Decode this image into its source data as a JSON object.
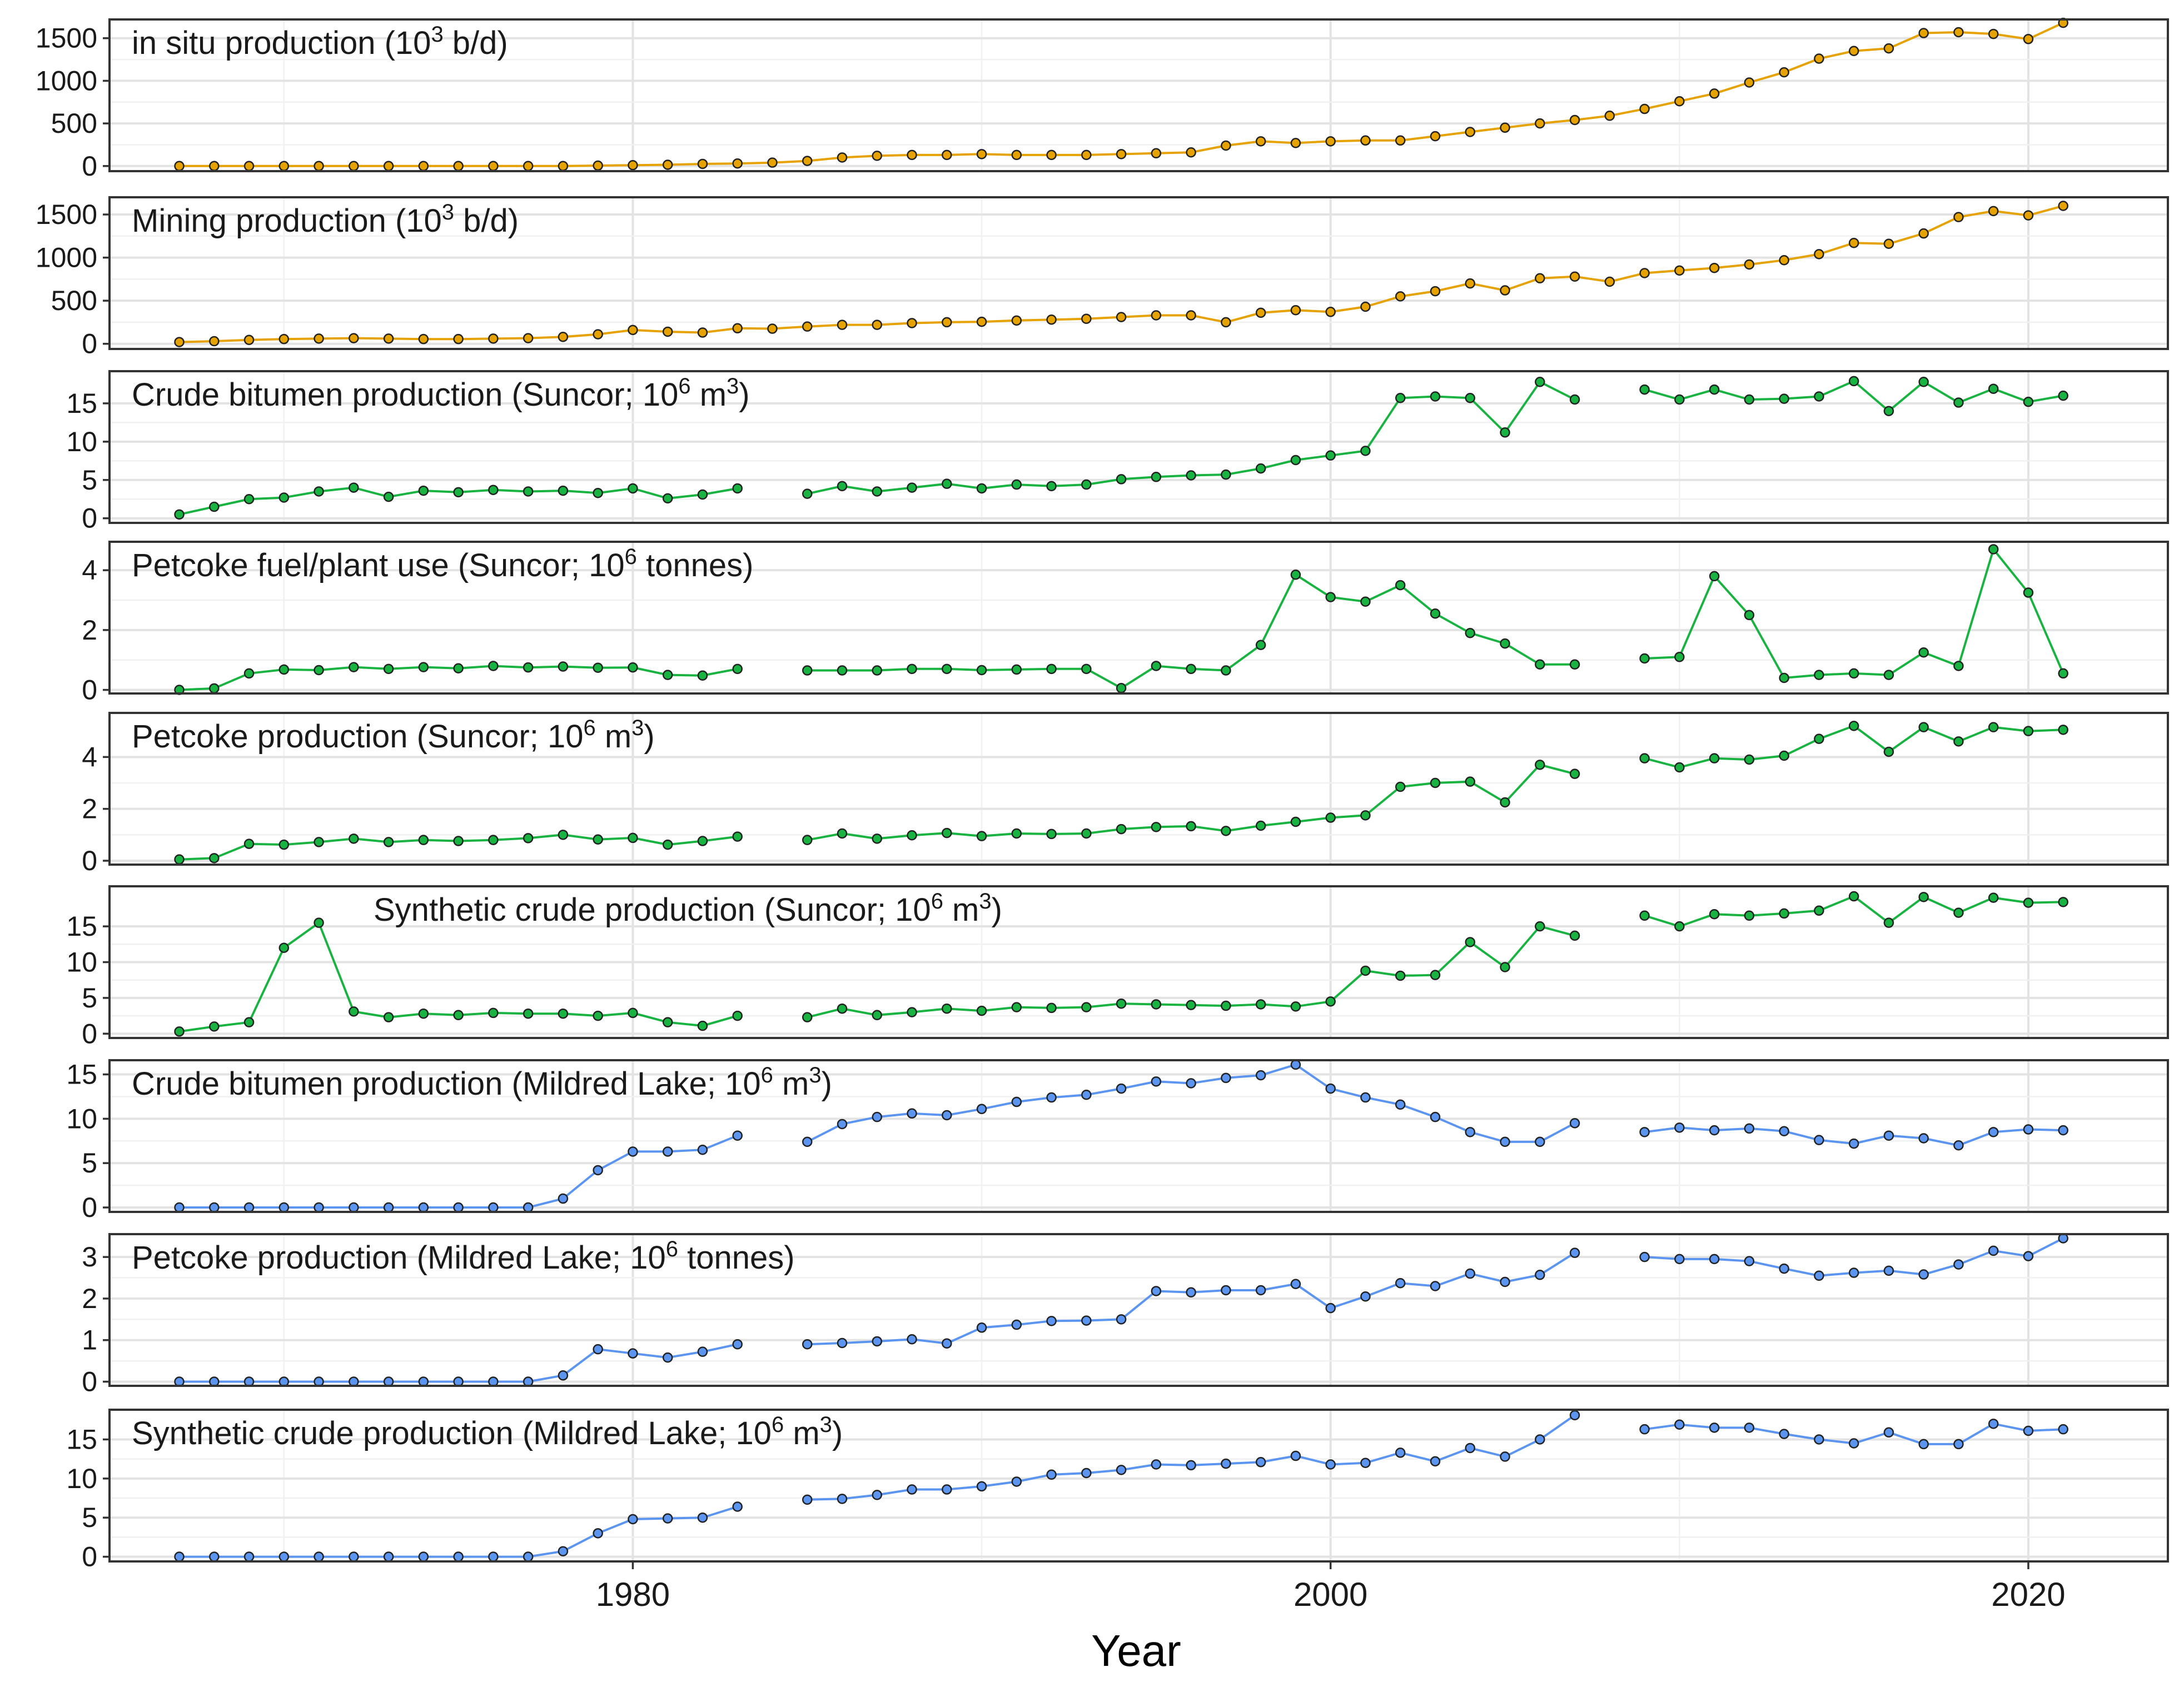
{
  "figure": {
    "xlabel": "Year",
    "xlim": [
      1965,
      2024
    ],
    "xticks": [
      1980,
      2000,
      2020
    ]
  },
  "colors": {
    "orange": "#e5a200",
    "green": "#19b341",
    "blue": "#5b95f0"
  },
  "chart_data": [
    {
      "type": "line",
      "color_key": "orange",
      "title_parts": [
        {
          "t": "in situ production (10"
        },
        {
          "t": "3",
          "sup": true
        },
        {
          "t": " b/d)"
        }
      ],
      "title_anchor": "left",
      "ylim": [
        -60,
        1720
      ],
      "yticks": [
        0,
        500,
        1000,
        1500
      ],
      "yticklabels": [
        "0",
        "500",
        "1000",
        "1500"
      ],
      "x": [
        1967,
        1968,
        1969,
        1970,
        1971,
        1972,
        1973,
        1974,
        1975,
        1976,
        1977,
        1978,
        1979,
        1980,
        1981,
        1982,
        1983,
        1984,
        1985,
        1986,
        1987,
        1988,
        1989,
        1990,
        1991,
        1992,
        1993,
        1994,
        1995,
        1996,
        1997,
        1998,
        1999,
        2000,
        2001,
        2002,
        2003,
        2004,
        2005,
        2006,
        2007,
        2008,
        2009,
        2010,
        2011,
        2012,
        2013,
        2014,
        2015,
        2016,
        2017,
        2018,
        2019,
        2020,
        2021
      ],
      "y": [
        0,
        0,
        0,
        0,
        0,
        0,
        0,
        0,
        0,
        0,
        0,
        0,
        5,
        10,
        15,
        25,
        30,
        40,
        60,
        100,
        120,
        130,
        130,
        140,
        130,
        130,
        130,
        140,
        150,
        160,
        240,
        290,
        270,
        290,
        300,
        300,
        350,
        400,
        450,
        500,
        540,
        590,
        670,
        760,
        850,
        980,
        1100,
        1260,
        1350,
        1380,
        1560,
        1570,
        1550,
        1490,
        1680
      ]
    },
    {
      "type": "line",
      "color_key": "orange",
      "title_parts": [
        {
          "t": "Mining production (10"
        },
        {
          "t": "3",
          "sup": true
        },
        {
          "t": " b/d)"
        }
      ],
      "title_anchor": "left",
      "ylim": [
        -60,
        1700
      ],
      "yticks": [
        0,
        500,
        1000,
        1500
      ],
      "yticklabels": [
        "0",
        "500",
        "1000",
        "1500"
      ],
      "x": [
        1967,
        1968,
        1969,
        1970,
        1971,
        1972,
        1973,
        1974,
        1975,
        1976,
        1977,
        1978,
        1979,
        1980,
        1981,
        1982,
        1983,
        1984,
        1985,
        1986,
        1987,
        1988,
        1989,
        1990,
        1991,
        1992,
        1993,
        1994,
        1995,
        1996,
        1997,
        1998,
        1999,
        2000,
        2001,
        2002,
        2003,
        2004,
        2005,
        2006,
        2007,
        2008,
        2009,
        2010,
        2011,
        2012,
        2013,
        2014,
        2015,
        2016,
        2017,
        2018,
        2019,
        2020,
        2021
      ],
      "y": [
        20,
        30,
        45,
        55,
        60,
        65,
        60,
        55,
        55,
        60,
        65,
        80,
        110,
        160,
        140,
        130,
        180,
        175,
        200,
        220,
        220,
        240,
        250,
        255,
        270,
        280,
        290,
        310,
        330,
        330,
        250,
        360,
        390,
        370,
        430,
        550,
        610,
        700,
        620,
        760,
        780,
        720,
        820,
        850,
        880,
        920,
        970,
        1040,
        1170,
        1160,
        1280,
        1470,
        1540,
        1490,
        1600
      ]
    },
    {
      "type": "line",
      "color_key": "green",
      "title_parts": [
        {
          "t": "Crude bitumen production (Suncor; 10"
        },
        {
          "t": "6",
          "sup": true
        },
        {
          "t": " m"
        },
        {
          "t": "3",
          "sup": true
        },
        {
          "t": ")"
        }
      ],
      "title_anchor": "left",
      "ylim": [
        -0.6,
        19.2
      ],
      "yticks": [
        0,
        5,
        10,
        15
      ],
      "yticklabels": [
        "0",
        "5",
        "10",
        "15"
      ],
      "x": [
        1967,
        1968,
        1969,
        1970,
        1971,
        1972,
        1973,
        1974,
        1975,
        1976,
        1977,
        1978,
        1979,
        1980,
        1981,
        1982,
        1983,
        null,
        1985,
        1986,
        1987,
        1988,
        1989,
        1990,
        1991,
        1992,
        1993,
        1994,
        1995,
        1996,
        1997,
        1998,
        1999,
        2000,
        2001,
        2002,
        2003,
        2004,
        2005,
        2006,
        2007,
        null,
        2009,
        2010,
        2011,
        2012,
        2013,
        2014,
        2015,
        2016,
        2017,
        2018,
        2019,
        2020,
        2021
      ],
      "y": [
        0.5,
        1.5,
        2.5,
        2.7,
        3.5,
        4,
        2.8,
        3.6,
        3.4,
        3.7,
        3.5,
        3.6,
        3.3,
        3.9,
        2.6,
        3.1,
        3.9,
        null,
        3.2,
        4.2,
        3.5,
        4,
        4.5,
        3.9,
        4.4,
        4.2,
        4.4,
        5.1,
        5.4,
        5.6,
        5.7,
        6.5,
        7.6,
        8.2,
        8.8,
        15.7,
        15.9,
        15.7,
        11.2,
        17.8,
        15.5,
        null,
        16.8,
        15.5,
        16.8,
        15.5,
        15.6,
        15.9,
        17.9,
        14,
        17.8,
        15.1,
        16.9,
        15.2,
        16
      ]
    },
    {
      "type": "line",
      "color_key": "green",
      "title_parts": [
        {
          "t": "Petcoke fuel/plant use (Suncor; 10"
        },
        {
          "t": "6",
          "sup": true
        },
        {
          "t": " tonnes)"
        }
      ],
      "title_anchor": "left",
      "ylim": [
        -0.12,
        4.95
      ],
      "yticks": [
        0,
        2,
        4
      ],
      "yticklabels": [
        "0",
        "2",
        "4"
      ],
      "x": [
        1967,
        1968,
        1969,
        1970,
        1971,
        1972,
        1973,
        1974,
        1975,
        1976,
        1977,
        1978,
        1979,
        1980,
        1981,
        1982,
        1983,
        null,
        1985,
        1986,
        1987,
        1988,
        1989,
        1990,
        1991,
        1992,
        1993,
        1994,
        1995,
        1996,
        1997,
        1998,
        1999,
        2000,
        2001,
        2002,
        2003,
        2004,
        2005,
        2006,
        2007,
        null,
        2009,
        2010,
        2011,
        2012,
        2013,
        2014,
        2015,
        2016,
        2017,
        2018,
        2019,
        2020,
        2021
      ],
      "y": [
        0,
        0.05,
        0.55,
        0.68,
        0.66,
        0.76,
        0.7,
        0.76,
        0.72,
        0.8,
        0.75,
        0.78,
        0.74,
        0.75,
        0.5,
        0.48,
        0.7,
        null,
        0.65,
        0.65,
        0.65,
        0.7,
        0.7,
        0.66,
        0.68,
        0.7,
        0.7,
        0.06,
        0.8,
        0.7,
        0.65,
        1.5,
        3.85,
        3.1,
        2.95,
        3.5,
        2.55,
        1.9,
        1.55,
        0.85,
        0.85,
        null,
        1.05,
        1.1,
        3.8,
        2.5,
        0.4,
        0.5,
        0.55,
        0.5,
        1.25,
        0.8,
        4.7,
        3.25,
        0.55
      ]
    },
    {
      "type": "line",
      "color_key": "green",
      "title_parts": [
        {
          "t": "Petcoke production (Suncor; 10"
        },
        {
          "t": "6",
          "sup": true
        },
        {
          "t": " m"
        },
        {
          "t": "3",
          "sup": true
        },
        {
          "t": ")"
        }
      ],
      "title_anchor": "left",
      "ylim": [
        -0.15,
        5.7
      ],
      "yticks": [
        0,
        2,
        4
      ],
      "yticklabels": [
        "0",
        "2",
        "4"
      ],
      "x": [
        1967,
        1968,
        1969,
        1970,
        1971,
        1972,
        1973,
        1974,
        1975,
        1976,
        1977,
        1978,
        1979,
        1980,
        1981,
        1982,
        1983,
        null,
        1985,
        1986,
        1987,
        1988,
        1989,
        1990,
        1991,
        1992,
        1993,
        1994,
        1995,
        1996,
        1997,
        1998,
        1999,
        2000,
        2001,
        2002,
        2003,
        2004,
        2005,
        2006,
        2007,
        null,
        2009,
        2010,
        2011,
        2012,
        2013,
        2014,
        2015,
        2016,
        2017,
        2018,
        2019,
        2020,
        2021
      ],
      "y": [
        0.05,
        0.1,
        0.65,
        0.62,
        0.72,
        0.85,
        0.72,
        0.8,
        0.76,
        0.8,
        0.87,
        1,
        0.82,
        0.88,
        0.62,
        0.76,
        0.93,
        null,
        0.8,
        1.05,
        0.85,
        0.98,
        1.07,
        0.95,
        1.05,
        1.03,
        1.05,
        1.22,
        1.3,
        1.33,
        1.15,
        1.35,
        1.5,
        1.66,
        1.75,
        2.85,
        3,
        3.05,
        2.25,
        3.7,
        3.35,
        null,
        3.95,
        3.6,
        3.95,
        3.9,
        4.05,
        4.7,
        5.2,
        4.2,
        5.15,
        4.6,
        5.15,
        5,
        5.05
      ]
    },
    {
      "type": "line",
      "color_key": "green",
      "title_parts": [
        {
          "t": "Synthetic crude production (Suncor; 10"
        },
        {
          "t": "6",
          "sup": true
        },
        {
          "t": " m"
        },
        {
          "t": "3",
          "sup": true
        },
        {
          "t": ")"
        }
      ],
      "title_anchor": "center",
      "ylim": [
        -0.6,
        20.6
      ],
      "yticks": [
        0,
        5,
        10,
        15
      ],
      "yticklabels": [
        "0",
        "5",
        "10",
        "15"
      ],
      "x": [
        1967,
        1968,
        1969,
        1970,
        1971,
        1972,
        1973,
        1974,
        1975,
        1976,
        1977,
        1978,
        1979,
        1980,
        1981,
        1982,
        1983,
        null,
        1985,
        1986,
        1987,
        1988,
        1989,
        1990,
        1991,
        1992,
        1993,
        1994,
        1995,
        1996,
        1997,
        1998,
        1999,
        2000,
        2001,
        2002,
        2003,
        2004,
        2005,
        2006,
        2007,
        null,
        2009,
        2010,
        2011,
        2012,
        2013,
        2014,
        2015,
        2016,
        2017,
        2018,
        2019,
        2020,
        2021
      ],
      "y": [
        0.3,
        1,
        1.6,
        12,
        15.5,
        3.1,
        2.3,
        2.8,
        2.6,
        2.9,
        2.8,
        2.8,
        2.5,
        2.9,
        1.6,
        1.1,
        2.5,
        null,
        2.3,
        3.5,
        2.6,
        3,
        3.5,
        3.2,
        3.7,
        3.6,
        3.7,
        4.2,
        4.1,
        4,
        3.9,
        4.1,
        3.8,
        4.5,
        8.8,
        8.1,
        8.2,
        12.8,
        9.3,
        15,
        13.7,
        null,
        16.5,
        15,
        16.7,
        16.5,
        16.8,
        17.2,
        19.2,
        15.5,
        19.1,
        16.9,
        19,
        18.3,
        18.4
      ]
    },
    {
      "type": "line",
      "color_key": "blue",
      "title_parts": [
        {
          "t": "Crude bitumen production (Mildred Lake; 10"
        },
        {
          "t": "6",
          "sup": true
        },
        {
          "t": " m"
        },
        {
          "t": "3",
          "sup": true
        },
        {
          "t": ")"
        }
      ],
      "title_anchor": "left",
      "ylim": [
        -0.5,
        16.6
      ],
      "yticks": [
        0,
        5,
        10,
        15
      ],
      "yticklabels": [
        "0",
        "5",
        "10",
        "15"
      ],
      "x": [
        1967,
        1968,
        1969,
        1970,
        1971,
        1972,
        1973,
        1974,
        1975,
        1976,
        1977,
        1978,
        1979,
        1980,
        1981,
        1982,
        1983,
        null,
        1985,
        1986,
        1987,
        1988,
        1989,
        1990,
        1991,
        1992,
        1993,
        1994,
        1995,
        1996,
        1997,
        1998,
        1999,
        2000,
        2001,
        2002,
        2003,
        2004,
        2005,
        2006,
        2007,
        null,
        2009,
        2010,
        2011,
        2012,
        2013,
        2014,
        2015,
        2016,
        2017,
        2018,
        2019,
        2020,
        2021
      ],
      "y": [
        0,
        0,
        0,
        0,
        0,
        0,
        0,
        0,
        0,
        0,
        0,
        1,
        4.2,
        6.3,
        6.3,
        6.5,
        8.1,
        null,
        7.4,
        9.4,
        10.2,
        10.6,
        10.4,
        11.1,
        11.9,
        12.4,
        12.7,
        13.4,
        14.2,
        14,
        14.6,
        14.9,
        16.1,
        13.4,
        12.4,
        11.6,
        10.2,
        8.5,
        7.4,
        7.4,
        9.5,
        null,
        8.5,
        9,
        8.7,
        8.9,
        8.6,
        7.6,
        7.2,
        8.1,
        7.8,
        7,
        8.5,
        8.8,
        8.7
      ]
    },
    {
      "type": "line",
      "color_key": "blue",
      "title_parts": [
        {
          "t": "Petcoke production (Mildred Lake; 10"
        },
        {
          "t": "6",
          "sup": true
        },
        {
          "t": " tonnes)"
        }
      ],
      "title_anchor": "left",
      "ylim": [
        -0.1,
        3.55
      ],
      "yticks": [
        0,
        1,
        2,
        3
      ],
      "yticklabels": [
        "0",
        "1",
        "2",
        "3"
      ],
      "x": [
        1967,
        1968,
        1969,
        1970,
        1971,
        1972,
        1973,
        1974,
        1975,
        1976,
        1977,
        1978,
        1979,
        1980,
        1981,
        1982,
        1983,
        null,
        1985,
        1986,
        1987,
        1988,
        1989,
        1990,
        1991,
        1992,
        1993,
        1994,
        1995,
        1996,
        1997,
        1998,
        1999,
        2000,
        2001,
        2002,
        2003,
        2004,
        2005,
        2006,
        2007,
        null,
        2009,
        2010,
        2011,
        2012,
        2013,
        2014,
        2015,
        2016,
        2017,
        2018,
        2019,
        2020,
        2021
      ],
      "y": [
        0,
        0,
        0,
        0,
        0,
        0,
        0,
        0,
        0,
        0,
        0,
        0.15,
        0.78,
        0.68,
        0.58,
        0.72,
        0.9,
        null,
        0.9,
        0.93,
        0.97,
        1.02,
        0.92,
        1.3,
        1.37,
        1.46,
        1.47,
        1.5,
        2.18,
        2.15,
        2.2,
        2.2,
        2.35,
        1.77,
        2.05,
        2.37,
        2.3,
        2.6,
        2.4,
        2.57,
        3.1,
        null,
        3,
        2.95,
        2.95,
        2.9,
        2.72,
        2.55,
        2.62,
        2.67,
        2.58,
        2.82,
        3.15,
        3.02,
        3.45
      ]
    },
    {
      "type": "line",
      "color_key": "blue",
      "title_parts": [
        {
          "t": "Synthetic crude production (Mildred Lake; 10"
        },
        {
          "t": "6",
          "sup": true
        },
        {
          "t": " m"
        },
        {
          "t": "3",
          "sup": true
        },
        {
          "t": ")"
        }
      ],
      "title_anchor": "left",
      "ylim": [
        -0.6,
        18.8
      ],
      "yticks": [
        0,
        5,
        10,
        15
      ],
      "yticklabels": [
        "0",
        "5",
        "10",
        "15"
      ],
      "x": [
        1967,
        1968,
        1969,
        1970,
        1971,
        1972,
        1973,
        1974,
        1975,
        1976,
        1977,
        1978,
        1979,
        1980,
        1981,
        1982,
        1983,
        null,
        1985,
        1986,
        1987,
        1988,
        1989,
        1990,
        1991,
        1992,
        1993,
        1994,
        1995,
        1996,
        1997,
        1998,
        1999,
        2000,
        2001,
        2002,
        2003,
        2004,
        2005,
        2006,
        2007,
        null,
        2009,
        2010,
        2011,
        2012,
        2013,
        2014,
        2015,
        2016,
        2017,
        2018,
        2019,
        2020,
        2021
      ],
      "y": [
        0,
        0,
        0,
        0,
        0,
        0,
        0,
        0,
        0,
        0,
        0,
        0.7,
        3,
        4.8,
        4.9,
        5,
        6.4,
        null,
        7.3,
        7.4,
        7.9,
        8.6,
        8.6,
        9,
        9.6,
        10.5,
        10.7,
        11.1,
        11.8,
        11.7,
        11.9,
        12.1,
        12.9,
        11.8,
        12,
        13.3,
        12.2,
        13.9,
        12.8,
        15,
        18.1,
        null,
        16.3,
        16.9,
        16.5,
        16.5,
        15.7,
        15,
        14.5,
        15.9,
        14.4,
        14.4,
        17,
        16.1,
        16.3
      ]
    }
  ]
}
